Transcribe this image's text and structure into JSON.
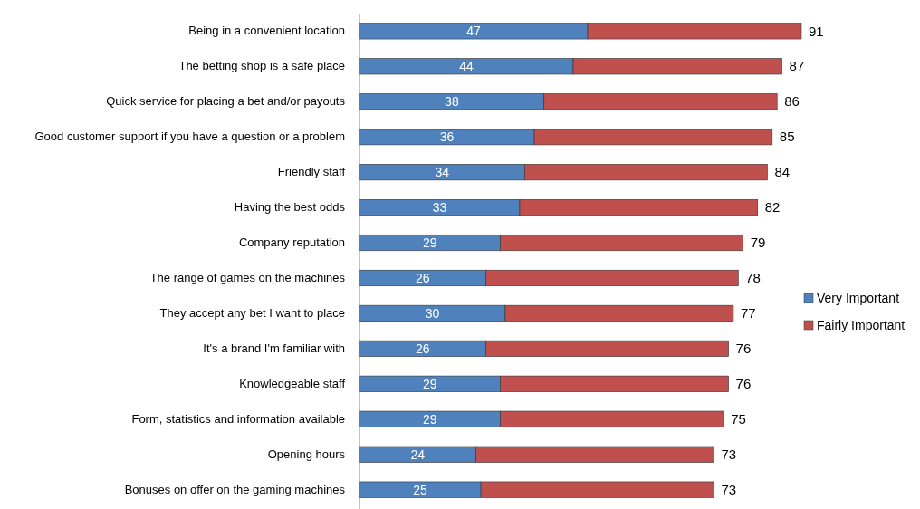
{
  "chart_data": {
    "type": "bar",
    "orientation": "horizontal",
    "stacked": true,
    "categories": [
      "Being in a convenient location",
      "The betting shop is a safe place",
      "Quick service for placing a bet and/or payouts",
      "Good customer support if you have a question or a problem",
      "Friendly staff",
      "Having the best odds",
      "Company reputation",
      "The range of games on the machines",
      "They accept any bet I want to place",
      "It's a brand I'm familiar with",
      "Knowledgeable staff",
      "Form, statistics and information available",
      "Opening hours",
      "Bonuses on offer on the gaming machines"
    ],
    "series": [
      {
        "name": "Very Important",
        "color": "#4f81bd",
        "values": [
          47,
          44,
          38,
          36,
          34,
          33,
          29,
          26,
          30,
          26,
          29,
          29,
          24,
          25
        ],
        "value_labels": [
          "47",
          "44",
          "38",
          "36",
          "34",
          "33",
          "29",
          "26",
          "30",
          "26",
          "29",
          "29",
          "24",
          "25"
        ]
      },
      {
        "name": "Fairly Important",
        "color": "#c0504d",
        "values": [
          44,
          43,
          48,
          49,
          50,
          49,
          50,
          52,
          47,
          50,
          47,
          46,
          49,
          48
        ]
      }
    ],
    "totals": [
      "91",
      "87",
      "86",
      "85",
      "84",
      "82",
      "79",
      "78",
      "77",
      "76",
      "76",
      "75",
      "73",
      "73"
    ],
    "tick_labels": "y",
    "legend": "right"
  }
}
